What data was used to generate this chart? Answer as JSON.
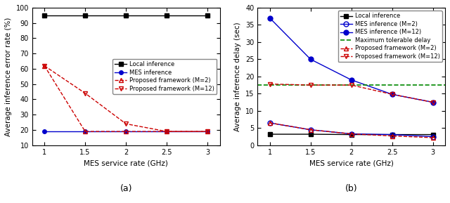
{
  "x": [
    1,
    1.5,
    2,
    2.5,
    3
  ],
  "left": {
    "local_inference": [
      95,
      95,
      95,
      95,
      95
    ],
    "mes_inference": [
      19,
      19,
      19,
      19,
      19
    ],
    "proposed_m2": [
      62,
      19,
      19,
      19,
      19
    ],
    "proposed_m12": [
      62,
      44,
      24,
      19,
      19
    ],
    "ylabel": "Average inference error rate (%)",
    "xlabel": "MES service rate (GHz)",
    "ylim": [
      10,
      100
    ],
    "yticks": [
      10,
      20,
      30,
      40,
      50,
      60,
      70,
      80,
      90,
      100
    ],
    "subtitle": "(a)"
  },
  "right": {
    "local_inference": [
      3.2,
      3.2,
      3.1,
      3.1,
      3.1
    ],
    "mes_m2": [
      6.5,
      4.5,
      3.3,
      3.1,
      2.5
    ],
    "mes_m12": [
      37,
      25,
      19,
      14.8,
      12.5
    ],
    "max_tolerable": 17.5,
    "proposed_m2": [
      6.5,
      4.5,
      3.3,
      2.7,
      2.2
    ],
    "proposed_m12": [
      17.8,
      17.5,
      17.5,
      14.8,
      12.5
    ],
    "ylabel": "Average inference delay (sec)",
    "xlabel": "MES service rate (GHz)",
    "ylim": [
      0,
      40
    ],
    "yticks": [
      0,
      5,
      10,
      15,
      20,
      25,
      30,
      35,
      40
    ],
    "subtitle": "(b)"
  },
  "colors": {
    "black": "#000000",
    "blue": "#0000cc",
    "red": "#cc0000",
    "green": "#008800"
  },
  "figsize": [
    6.4,
    2.89
  ],
  "dpi": 100
}
